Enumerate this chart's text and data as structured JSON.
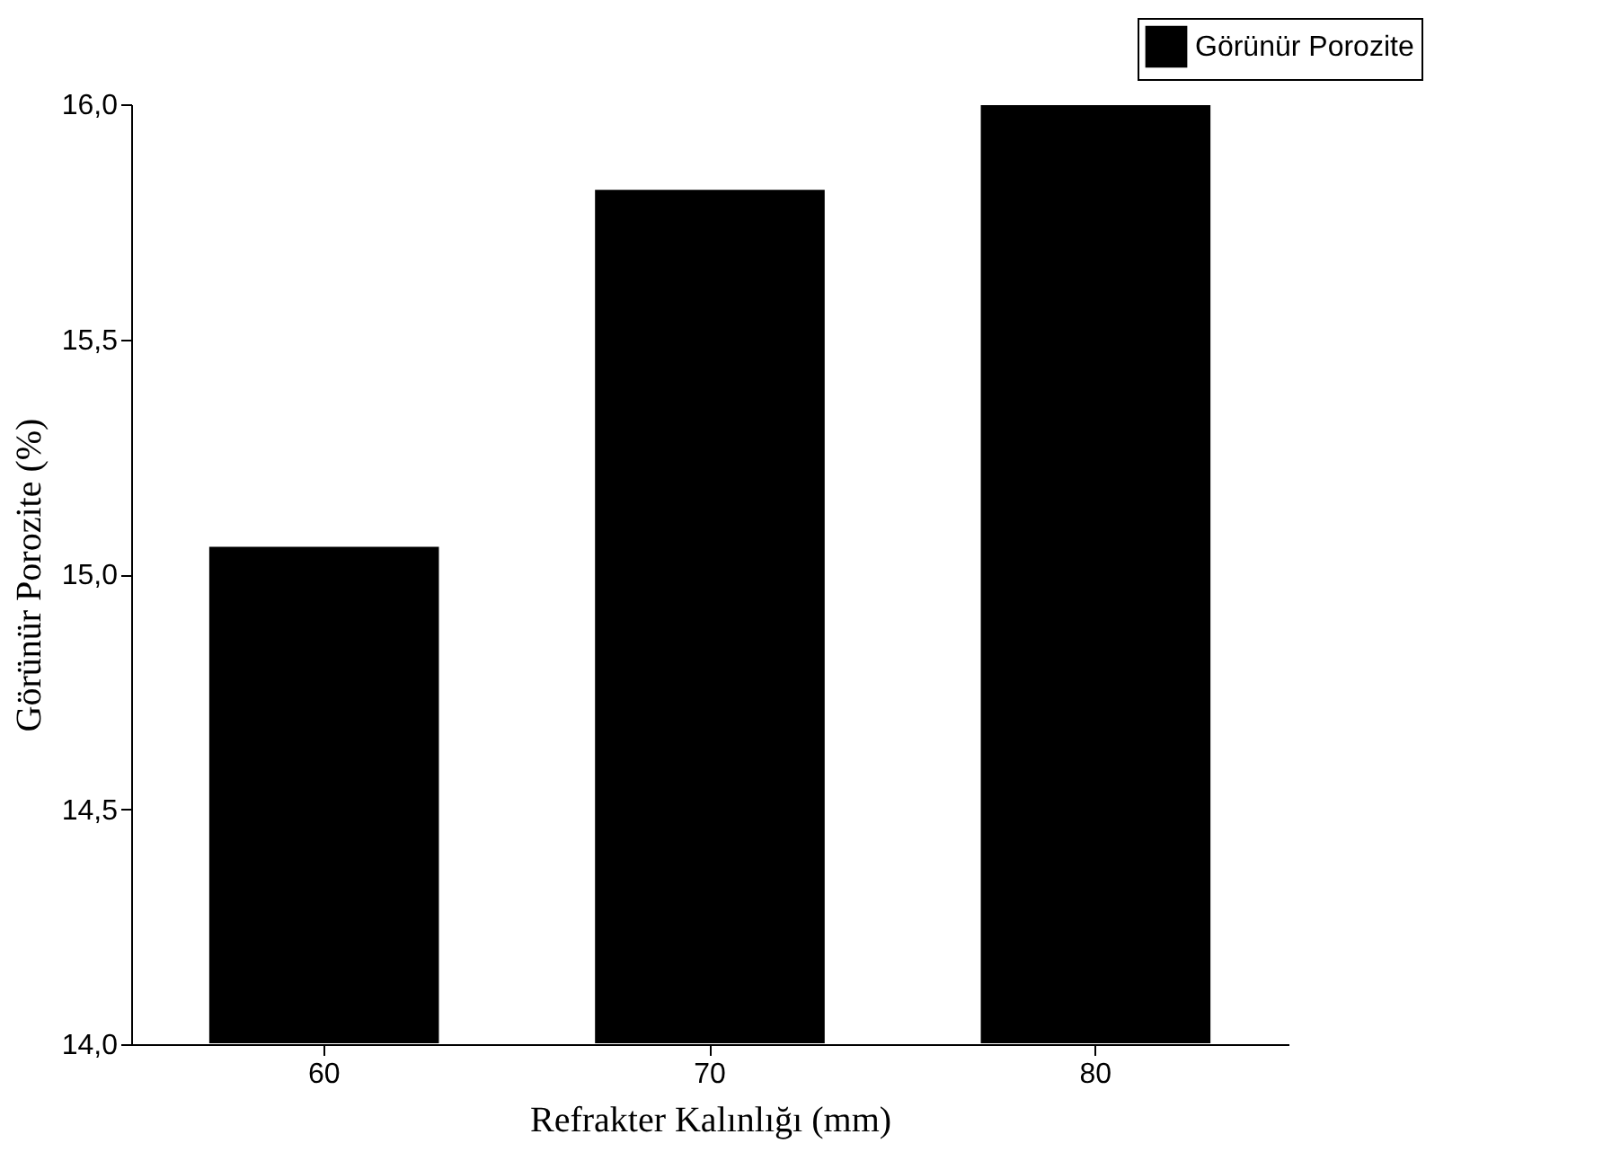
{
  "chart_data": {
    "type": "bar",
    "xlabel": "Refrakter Kalınlığı (mm)",
    "ylabel": "Görünür Porozite (%)",
    "categories": [
      "60",
      "70",
      "80"
    ],
    "series": [
      {
        "name": "Görünür Porozite",
        "color": "#000000",
        "values": [
          15.06,
          15.82,
          16.0
        ]
      }
    ],
    "ylim": [
      14.0,
      16.0
    ],
    "yticks": [
      {
        "value": 14.0,
        "label": "14,0"
      },
      {
        "value": 14.5,
        "label": "14,5"
      },
      {
        "value": 15.0,
        "label": "15,0"
      },
      {
        "value": 15.5,
        "label": "15,5"
      },
      {
        "value": 16.0,
        "label": "16,0"
      }
    ],
    "grid": false,
    "legend": "top right"
  }
}
